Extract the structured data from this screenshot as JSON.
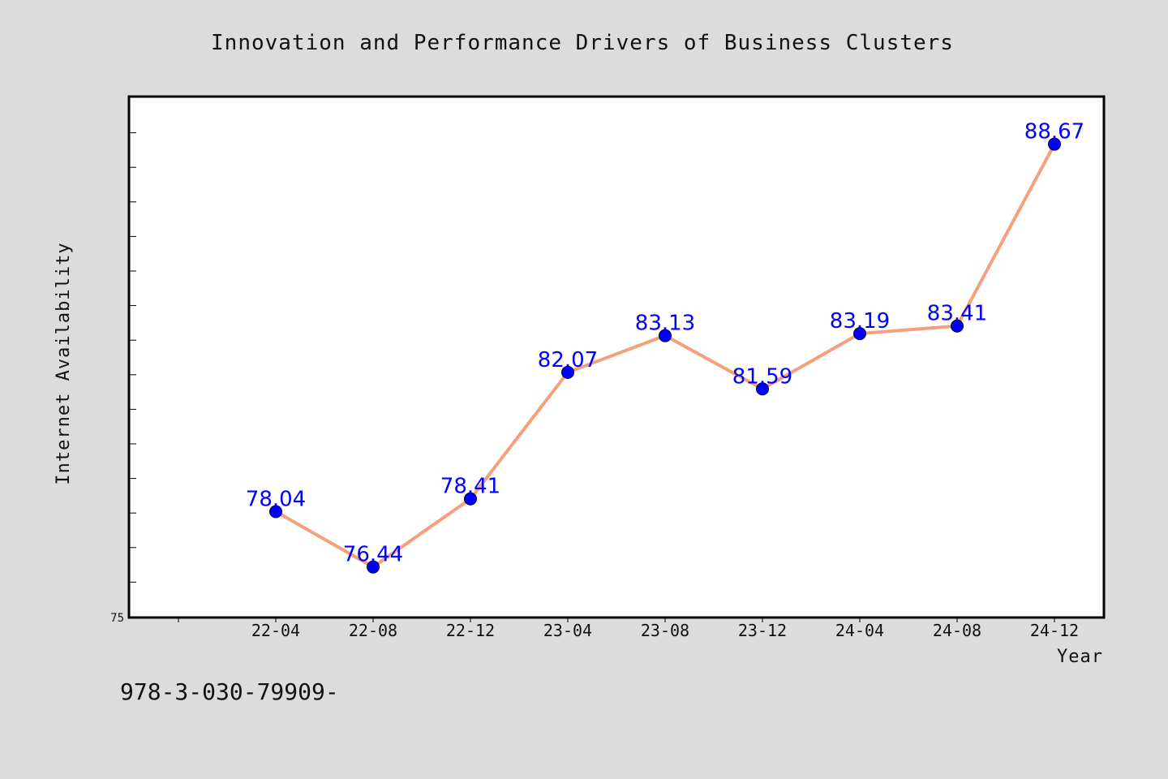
{
  "chart_data": {
    "type": "line",
    "title": "Innovation and Performance Drivers of Business Clusters",
    "xlabel": "Year",
    "ylabel": "Internet Availability",
    "categories": [
      "22-04",
      "22-08",
      "22-12",
      "23-04",
      "23-08",
      "23-12",
      "24-04",
      "24-08",
      "24-12"
    ],
    "series": [
      {
        "values": [
          78.04,
          76.44,
          78.41,
          82.07,
          83.13,
          81.59,
          83.19,
          83.41,
          88.67
        ],
        "line_color": "#f4a07c",
        "marker_color": "#0000ff"
      }
    ],
    "data_labels": [
      "78.04",
      "76.44",
      "78.41",
      "82.07",
      "83.13",
      "81.59",
      "83.19",
      "83.41",
      "88.67"
    ],
    "ylim": [
      75,
      90
    ],
    "ytick_labels": [
      "75"
    ],
    "grid": false,
    "legend": "none"
  },
  "footnote": "978-3-030-79909-",
  "colors": {
    "background": "#dcdcdc",
    "plot_background": "#ffffff",
    "axes_frame": "#000000",
    "data_label": "#0000ff"
  }
}
